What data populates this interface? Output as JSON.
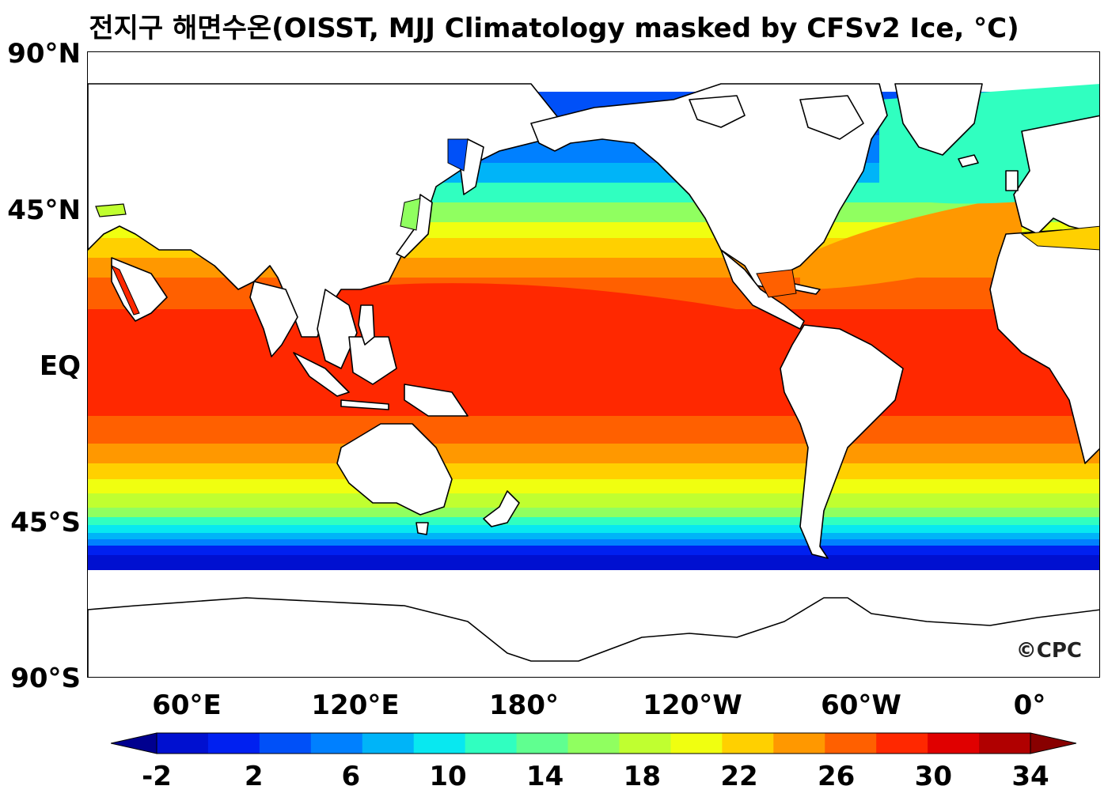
{
  "title": "전지구 해면수온(OISST, MJJ Climatology masked by CFSv2 Ice, °C)",
  "credit": "©CPC",
  "lat_labels": [
    "90°N",
    "45°N",
    "EQ",
    "45°S",
    "90°S"
  ],
  "lon_labels": [
    "60°E",
    "120°E",
    "180°",
    "120°W",
    "60°W",
    "0°"
  ],
  "colorbar": {
    "min": -2,
    "max": 34,
    "step": 2,
    "tick_labels": [
      "-2",
      "2",
      "6",
      "10",
      "14",
      "18",
      "22",
      "26",
      "30",
      "34"
    ],
    "colors": [
      "#00008f",
      "#0010d0",
      "#0020f0",
      "#0050f8",
      "#0080ff",
      "#00b4f8",
      "#08e8f0",
      "#30ffc0",
      "#60ff90",
      "#90ff60",
      "#c0ff30",
      "#f0ff10",
      "#ffd000",
      "#ff9800",
      "#ff6000",
      "#ff2800",
      "#e00000",
      "#b00000",
      "#880000"
    ]
  },
  "map": {
    "projection": "equirectangular, centered 150°E",
    "land_color": "#ffffff",
    "coastline_color": "#000000"
  }
}
